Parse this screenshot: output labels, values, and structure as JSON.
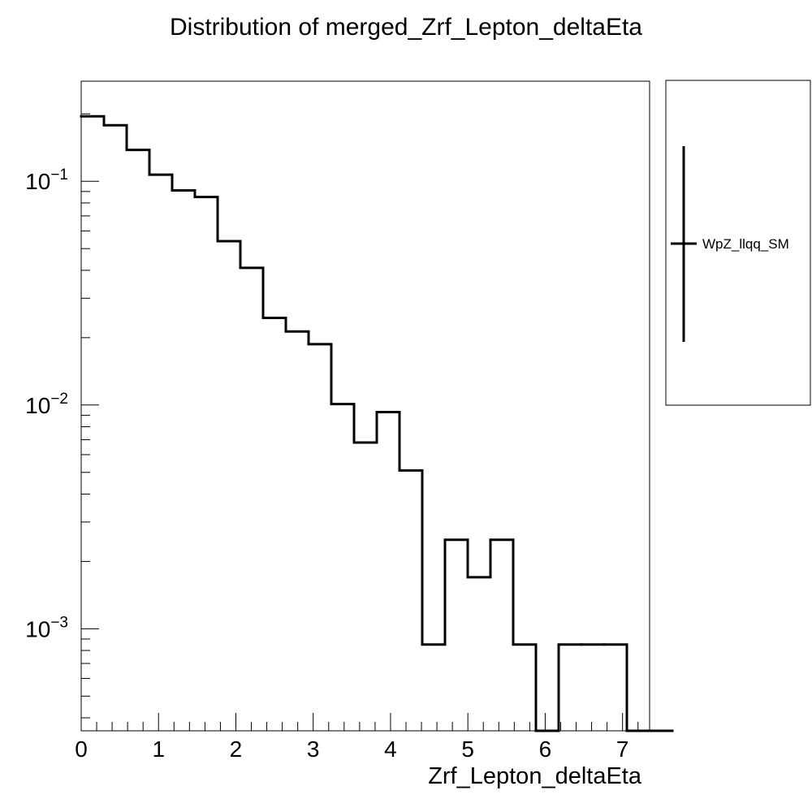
{
  "chart_data": {
    "type": "histogram-step",
    "title": "Distribution of merged_Zrf_Lepton_deltaEta",
    "xlabel": "Zrf_Lepton_deltaEta",
    "ylabel": "",
    "xlim": [
      0,
      7.35
    ],
    "ylim": [
      0.00035,
      0.28
    ],
    "yscale": "log",
    "grid": false,
    "legend_position": "right",
    "x_ticks": [
      0,
      1,
      2,
      3,
      4,
      5,
      6,
      7
    ],
    "y_ticks": [
      {
        "value": 0.1,
        "base": "10",
        "exp": "−1"
      },
      {
        "value": 0.01,
        "base": "10",
        "exp": "−2"
      },
      {
        "value": 0.001,
        "base": "10",
        "exp": "−3"
      }
    ],
    "bin_width": 0.294,
    "bin_edges_start": 0,
    "series": [
      {
        "name": "WpZ_llqq_SM",
        "color": "#000000",
        "values": [
          0.195,
          0.178,
          0.138,
          0.107,
          0.091,
          0.085,
          0.054,
          0.041,
          0.0245,
          0.0213,
          0.0187,
          0.0101,
          0.0068,
          0.0093,
          0.0051,
          0.00085,
          0.0025,
          0.0017,
          0.0025,
          0.00085,
          0.0,
          0.00085,
          0.00085,
          0.00085,
          0.0,
          0.0
        ]
      }
    ]
  }
}
